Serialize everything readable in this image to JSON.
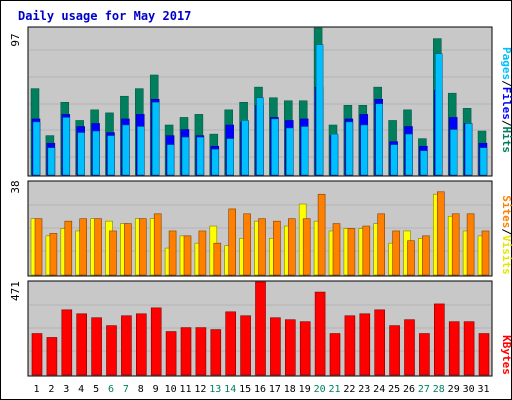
{
  "chart_data": [
    {
      "type": "bar",
      "title": "Daily usage for May 2017",
      "ylabel_max": "97",
      "categories": [
        "1",
        "2",
        "3",
        "4",
        "5",
        "6",
        "7",
        "8",
        "9",
        "10",
        "11",
        "12",
        "13",
        "14",
        "15",
        "16",
        "17",
        "18",
        "19",
        "20",
        "21",
        "22",
        "23",
        "24",
        "25",
        "26",
        "27",
        "28",
        "29",
        "30",
        "31"
      ],
      "weekend_days": [
        "6",
        "7",
        "13",
        "14",
        "20",
        "21",
        "27",
        "28"
      ],
      "series": [
        {
          "name": "Hits",
          "color": "#007f5f",
          "values": [
            57,
            26,
            48,
            36,
            43,
            41,
            52,
            57,
            66,
            33,
            38,
            40,
            27,
            43,
            48,
            58,
            51,
            49,
            49,
            97,
            33,
            46,
            46,
            58,
            36,
            43,
            24,
            90,
            54,
            44,
            29
          ]
        },
        {
          "name": "Files",
          "color": "#0000ff",
          "values": [
            37,
            21,
            40,
            32,
            34,
            28,
            37,
            40,
            50,
            26,
            30,
            26,
            19,
            33,
            35,
            46,
            38,
            36,
            37,
            58,
            26,
            37,
            40,
            50,
            22,
            32,
            19,
            56,
            38,
            34,
            21
          ]
        },
        {
          "name": "Pages",
          "color": "#00bfff",
          "values": [
            35,
            18,
            38,
            28,
            29,
            26,
            33,
            32,
            48,
            20,
            25,
            25,
            17,
            24,
            36,
            51,
            37,
            31,
            32,
            86,
            27,
            35,
            33,
            47,
            20,
            27,
            16,
            80,
            30,
            34,
            18
          ]
        }
      ]
    },
    {
      "type": "bar",
      "ylabel_max": "38",
      "series": [
        {
          "name": "Visits",
          "color": "#ffff00",
          "values": [
            23,
            16,
            19,
            18,
            23,
            22,
            21,
            23,
            23,
            11,
            16,
            13,
            20,
            12,
            15,
            22,
            15,
            20,
            29,
            22,
            18,
            19,
            19,
            21,
            13,
            18,
            15,
            33,
            24,
            18,
            16
          ]
        },
        {
          "name": "Sites",
          "color": "#ff8000",
          "values": [
            23,
            17,
            22,
            23,
            23,
            18,
            21,
            23,
            25,
            18,
            16,
            18,
            13,
            27,
            25,
            23,
            22,
            23,
            23,
            33,
            21,
            19,
            20,
            25,
            18,
            14,
            16,
            34,
            25,
            25,
            18
          ]
        }
      ]
    },
    {
      "type": "bar",
      "ylabel_max": "471",
      "series": [
        {
          "name": "KBytes",
          "color": "#ff0000",
          "values": [
            210,
            190,
            330,
            310,
            290,
            250,
            300,
            310,
            340,
            220,
            240,
            240,
            230,
            320,
            300,
            471,
            290,
            280,
            270,
            420,
            210,
            300,
            310,
            330,
            250,
            280,
            210,
            360,
            270,
            270,
            210
          ]
        }
      ]
    }
  ]
}
